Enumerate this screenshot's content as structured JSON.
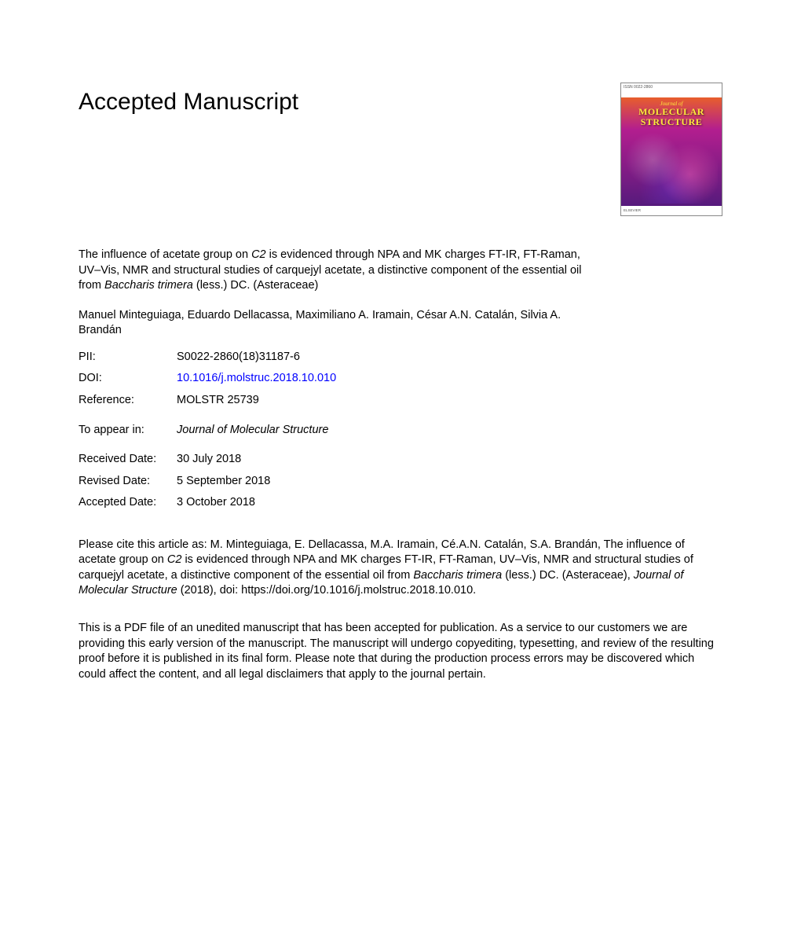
{
  "heading": "Accepted Manuscript",
  "cover": {
    "journal_small": "Journal of",
    "journal_title_l1": "MOLECULAR",
    "journal_title_l2": "STRUCTURE",
    "publisher": "ELSEVIER",
    "issn_label": "ISSN 0022-2860"
  },
  "article": {
    "title_pre": "The influence of acetate group on ",
    "title_c2": "C2",
    "title_mid": " is evidenced through NPA and MK charges FT-IR, FT-Raman, UV–Vis, NMR and structural studies of carquejyl acetate, a distinctive component of the essential oil from ",
    "title_species": "Baccharis trimera",
    "title_post": " (less.) DC. (Asteraceae)"
  },
  "authors": "Manuel Minteguiaga, Eduardo Dellacassa, Maximiliano A. Iramain, César A.N. Catalán, Silvia A. Brandán",
  "meta": {
    "pii_label": "PII:",
    "pii_value": "S0022-2860(18)31187-6",
    "doi_label": "DOI:",
    "doi_value": "10.1016/j.molstruc.2018.10.010",
    "ref_label": "Reference:",
    "ref_value": "MOLSTR 25739",
    "appear_label": "To appear in:",
    "appear_value": "Journal of Molecular Structure",
    "received_label": "Received Date:",
    "received_value": "30 July 2018",
    "revised_label": "Revised Date:",
    "revised_value": "5 September 2018",
    "accepted_label": "Accepted Date:",
    "accepted_value": "3 October 2018"
  },
  "citation": {
    "pre": "Please cite this article as: M. Minteguiaga, E. Dellacassa, M.A. Iramain, Cé.A.N. Catalán, S.A. Brandán, The influence of acetate group on ",
    "c2": "C2",
    "mid": " is evidenced through NPA and MK charges FT-IR, FT-Raman, UV–Vis, NMR and structural studies of carquejyl acetate, a distinctive component of the essential oil from ",
    "species": "Baccharis trimera",
    "post1": " (less.) DC. (Asteraceae), ",
    "journal": "Journal of Molecular Structure",
    "post2": " (2018), doi: https://doi.org/10.1016/j.molstruc.2018.10.010."
  },
  "disclaimer": "This is a PDF file of an unedited manuscript that has been accepted for publication. As a service to our customers we are providing this early version of the manuscript. The manuscript will undergo copyediting, typesetting, and review of the resulting proof before it is published in its final form. Please note that during the production process errors may be discovered which could affect the content, and all legal disclaimers that apply to the journal pertain.",
  "colors": {
    "link": "#0000ff",
    "text": "#000000",
    "background": "#ffffff"
  }
}
